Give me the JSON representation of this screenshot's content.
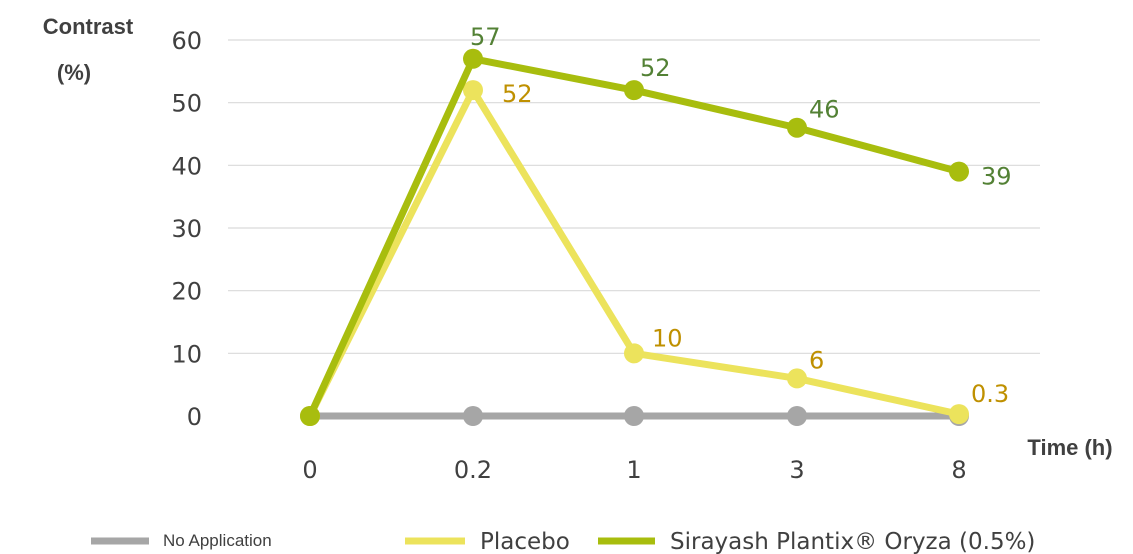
{
  "chart_data": {
    "type": "line",
    "categories": [
      "0",
      "0.2",
      "1",
      "3",
      "8"
    ],
    "ylabel_line1": "Contrast",
    "ylabel_line2": "(%)",
    "xlabel": "Time (h)",
    "ylim": [
      0,
      60
    ],
    "yticks": [
      "0",
      "10",
      "20",
      "30",
      "40",
      "50",
      "60"
    ],
    "grid": true,
    "legend_position": "bottom",
    "series": [
      {
        "name": "No Application",
        "values": [
          0,
          0,
          0,
          0,
          0
        ],
        "labels": [],
        "color": "#a6a6a6",
        "label_color": "#a6a6a6"
      },
      {
        "name": "Placebo",
        "values": [
          0,
          52,
          10,
          6,
          0.3
        ],
        "labels": [
          "",
          "52",
          "10",
          "6",
          "0.3"
        ],
        "color": "#ece35c",
        "label_color": "#bf9000"
      },
      {
        "name": "Sirayash Plantix® Oryza (0.5%)",
        "values": [
          0,
          57,
          52,
          46,
          39
        ],
        "labels": [
          "",
          "57",
          "52",
          "46",
          "39"
        ],
        "color": "#a8bd0e",
        "label_color": "#538135"
      }
    ]
  }
}
